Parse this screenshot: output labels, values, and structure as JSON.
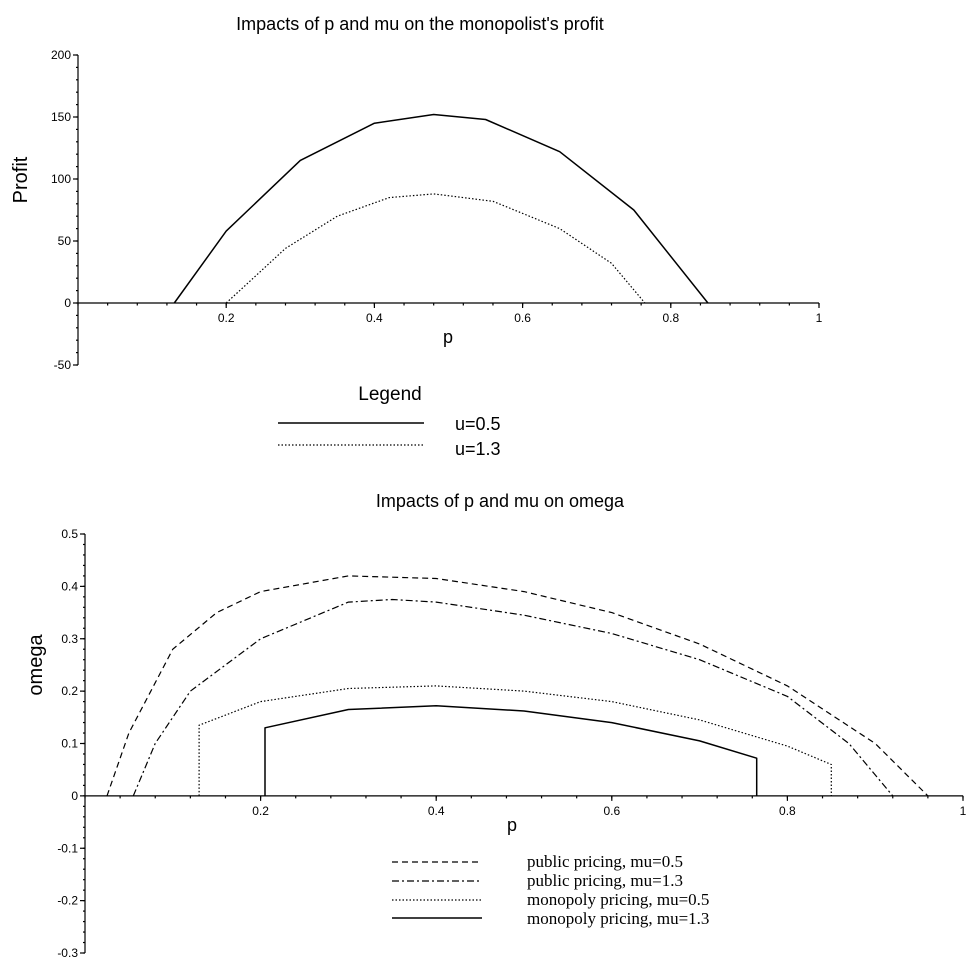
{
  "chart_data": [
    {
      "type": "line",
      "title": "Impacts of p and mu on the monopolist's profit",
      "xlabel": "p",
      "ylabel": "Profit",
      "xlim": [
        0,
        1
      ],
      "ylim": [
        -50,
        200
      ],
      "x_ticks": [
        "0.2",
        "0.4",
        "0.6",
        "0.8",
        "1"
      ],
      "y_ticks": [
        "200",
        "150",
        "100",
        "50",
        "0",
        "-50"
      ],
      "legend_title": "Legend",
      "legend_position": "bottom",
      "series": [
        {
          "name": "u=0.5",
          "style": "solid",
          "points": [
            [
              0.13,
              0
            ],
            [
              0.2,
              58
            ],
            [
              0.3,
              115
            ],
            [
              0.4,
              145
            ],
            [
              0.48,
              152
            ],
            [
              0.55,
              148
            ],
            [
              0.65,
              122
            ],
            [
              0.75,
              75
            ],
            [
              0.85,
              0
            ]
          ]
        },
        {
          "name": "u=1.3",
          "style": "dotted",
          "points": [
            [
              0.2,
              0
            ],
            [
              0.28,
              44
            ],
            [
              0.35,
              70
            ],
            [
              0.42,
              85
            ],
            [
              0.48,
              88
            ],
            [
              0.56,
              82
            ],
            [
              0.65,
              60
            ],
            [
              0.72,
              32
            ],
            [
              0.765,
              0
            ]
          ]
        }
      ]
    },
    {
      "type": "line",
      "title": "Impacts of p and mu on omega",
      "xlabel": "p",
      "ylabel": "omega",
      "xlim": [
        0,
        1
      ],
      "ylim": [
        -0.3,
        0.5
      ],
      "x_ticks": [
        "0.2",
        "0.4",
        "0.6",
        "0.8",
        "1"
      ],
      "y_ticks": [
        "0.5",
        "0.4",
        "0.3",
        "0.2",
        "0.1",
        "0",
        "-0.1",
        "-0.2",
        "-0.3"
      ],
      "legend_position": "bottom",
      "series": [
        {
          "name": "public pricing, mu=0.5",
          "style": "dashed",
          "points": [
            [
              0.025,
              0
            ],
            [
              0.05,
              0.12
            ],
            [
              0.1,
              0.28
            ],
            [
              0.15,
              0.35
            ],
            [
              0.2,
              0.39
            ],
            [
              0.3,
              0.42
            ],
            [
              0.4,
              0.415
            ],
            [
              0.5,
              0.39
            ],
            [
              0.6,
              0.35
            ],
            [
              0.7,
              0.29
            ],
            [
              0.8,
              0.21
            ],
            [
              0.9,
              0.1
            ],
            [
              0.96,
              0
            ]
          ]
        },
        {
          "name": "public pricing, mu=1.3",
          "style": "dash-dot",
          "points": [
            [
              0.055,
              0
            ],
            [
              0.08,
              0.1
            ],
            [
              0.12,
              0.2
            ],
            [
              0.2,
              0.3
            ],
            [
              0.3,
              0.37
            ],
            [
              0.35,
              0.375
            ],
            [
              0.4,
              0.37
            ],
            [
              0.5,
              0.345
            ],
            [
              0.6,
              0.31
            ],
            [
              0.7,
              0.26
            ],
            [
              0.8,
              0.19
            ],
            [
              0.87,
              0.1
            ],
            [
              0.92,
              0
            ]
          ]
        },
        {
          "name": "monopoly pricing, mu=0.5",
          "style": "dotted",
          "points": [
            [
              0.13,
              0
            ],
            [
              0.13,
              0.135
            ],
            [
              0.2,
              0.18
            ],
            [
              0.3,
              0.205
            ],
            [
              0.4,
              0.21
            ],
            [
              0.5,
              0.2
            ],
            [
              0.6,
              0.18
            ],
            [
              0.7,
              0.145
            ],
            [
              0.8,
              0.095
            ],
            [
              0.85,
              0.06
            ],
            [
              0.85,
              0
            ]
          ]
        },
        {
          "name": "monopoly pricing, mu=1.3",
          "style": "solid",
          "points": [
            [
              0.205,
              0
            ],
            [
              0.205,
              0.13
            ],
            [
              0.3,
              0.165
            ],
            [
              0.4,
              0.172
            ],
            [
              0.5,
              0.162
            ],
            [
              0.6,
              0.14
            ],
            [
              0.7,
              0.105
            ],
            [
              0.765,
              0.072
            ],
            [
              0.765,
              0
            ]
          ]
        }
      ]
    }
  ]
}
